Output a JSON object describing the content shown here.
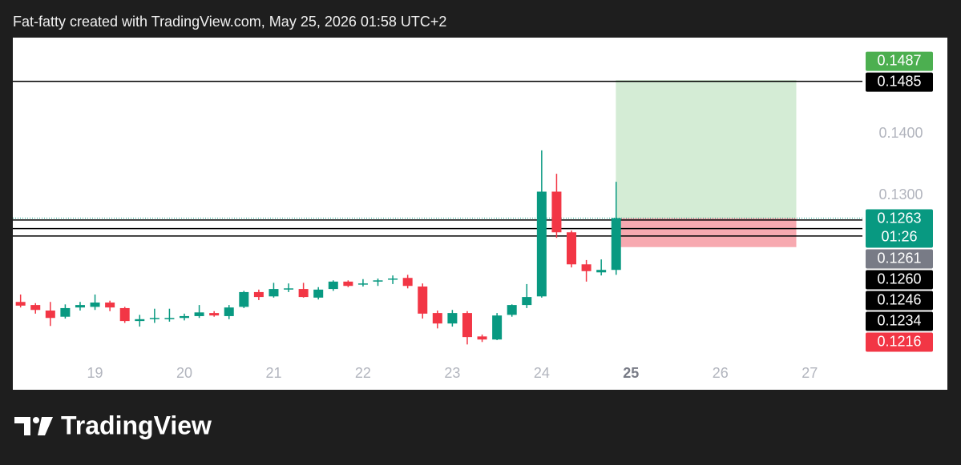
{
  "header": "Fat-fatty created with TradingView.com, May 25, 2026 01:58 UTC+2",
  "brand": "TradingView",
  "chart_data": {
    "type": "candlestick",
    "x": [
      18.1667,
      18.3333,
      18.5,
      18.6667,
      18.8333,
      19,
      19.1667,
      19.3333,
      19.5,
      19.6667,
      19.8333,
      20,
      20.1667,
      20.3333,
      20.5,
      20.6667,
      20.8333,
      21,
      21.1667,
      21.3333,
      21.5,
      21.6667,
      21.8333,
      22,
      22.1667,
      22.3333,
      22.5,
      22.6667,
      22.8333,
      23,
      23.1667,
      23.3333,
      23.5,
      23.6667,
      23.8333,
      24,
      24.1667,
      24.3333,
      24.5,
      24.6667,
      24.8333
    ],
    "open": [
      0.1127,
      0.1122,
      0.1113,
      0.1103,
      0.1118,
      0.1119,
      0.1126,
      0.1117,
      0.1096,
      0.11,
      0.1099,
      0.1101,
      0.1104,
      0.1109,
      0.1104,
      0.1119,
      0.1143,
      0.1136,
      0.1148,
      0.1148,
      0.1134,
      0.1148,
      0.116,
      0.1156,
      0.116,
      0.1164,
      0.1166,
      0.1152,
      0.1109,
      0.1092,
      0.1109,
      0.1071,
      0.1066,
      0.1106,
      0.1122,
      0.1136,
      0.1306,
      0.124,
      0.1188,
      0.1175,
      0.1179
    ],
    "high": [
      0.1139,
      0.1125,
      0.1127,
      0.1123,
      0.1127,
      0.1139,
      0.1129,
      0.1119,
      0.1106,
      0.1116,
      0.1116,
      0.1108,
      0.1122,
      0.1112,
      0.1122,
      0.1145,
      0.1147,
      0.1158,
      0.1157,
      0.1158,
      0.1151,
      0.1162,
      0.1162,
      0.1164,
      0.1165,
      0.117,
      0.1171,
      0.1157,
      0.1113,
      0.1114,
      0.1112,
      0.1074,
      0.1109,
      0.1123,
      0.1156,
      0.1373,
      0.1335,
      0.1243,
      0.1195,
      0.1196,
      0.1322
    ],
    "low": [
      0.1118,
      0.1108,
      0.1088,
      0.11,
      0.1113,
      0.1114,
      0.1112,
      0.1093,
      0.1087,
      0.1093,
      0.1095,
      0.1097,
      0.1101,
      0.1103,
      0.1099,
      0.1117,
      0.113,
      0.1134,
      0.1143,
      0.1134,
      0.1131,
      0.1145,
      0.1151,
      0.1152,
      0.1153,
      0.1156,
      0.1149,
      0.11,
      0.1084,
      0.1087,
      0.1058,
      0.1062,
      0.1065,
      0.1103,
      0.1117,
      0.1134,
      0.1231,
      0.1183,
      0.116,
      0.117,
      0.1171
    ],
    "close": [
      0.1121,
      0.1114,
      0.1101,
      0.1117,
      0.1122,
      0.1126,
      0.1118,
      0.1096,
      0.1099,
      0.1101,
      0.1101,
      0.1104,
      0.111,
      0.1105,
      0.1118,
      0.1143,
      0.1135,
      0.1148,
      0.1149,
      0.1135,
      0.1147,
      0.116,
      0.1153,
      0.1157,
      0.1162,
      0.1165,
      0.1153,
      0.1108,
      0.1092,
      0.1109,
      0.107,
      0.1066,
      0.1105,
      0.1122,
      0.1135,
      0.1306,
      0.124,
      0.1188,
      0.1177,
      0.1179,
      0.1263
    ],
    "up_color": "#089981",
    "down_color": "#f23645",
    "xlim": [
      18.08,
      27.59
    ],
    "xticks": [
      19,
      20,
      21,
      22,
      23,
      24,
      25,
      26,
      27
    ],
    "current_day_tick": 25,
    "ylim": [
      0.1026,
      0.1556
    ],
    "yticks": [
      {
        "value": 0.13,
        "label": "0.1300"
      },
      {
        "value": 0.14,
        "label": "0.1400"
      }
    ],
    "grid": false,
    "hline_color": "#000000",
    "hlines": [
      {
        "value": 0.1485
      },
      {
        "value": 0.126,
        "label": "0.1260"
      },
      {
        "value": 0.1246
      },
      {
        "value": 0.1234
      }
    ],
    "last_price": {
      "value": 0.1263,
      "countdown": "01:26",
      "color": "#089981"
    },
    "ref_price": {
      "value": 0.1261,
      "color": "#787b86"
    },
    "position": {
      "x_start": 24.83,
      "x_end": 26.85,
      "target": 0.1487,
      "entry": 0.1263,
      "stop": 0.1216,
      "profit_color": "#d4ecd5",
      "loss_color": "#f7a9b0",
      "target_color": "#4caf50",
      "stop_color": "#f23645"
    }
  }
}
